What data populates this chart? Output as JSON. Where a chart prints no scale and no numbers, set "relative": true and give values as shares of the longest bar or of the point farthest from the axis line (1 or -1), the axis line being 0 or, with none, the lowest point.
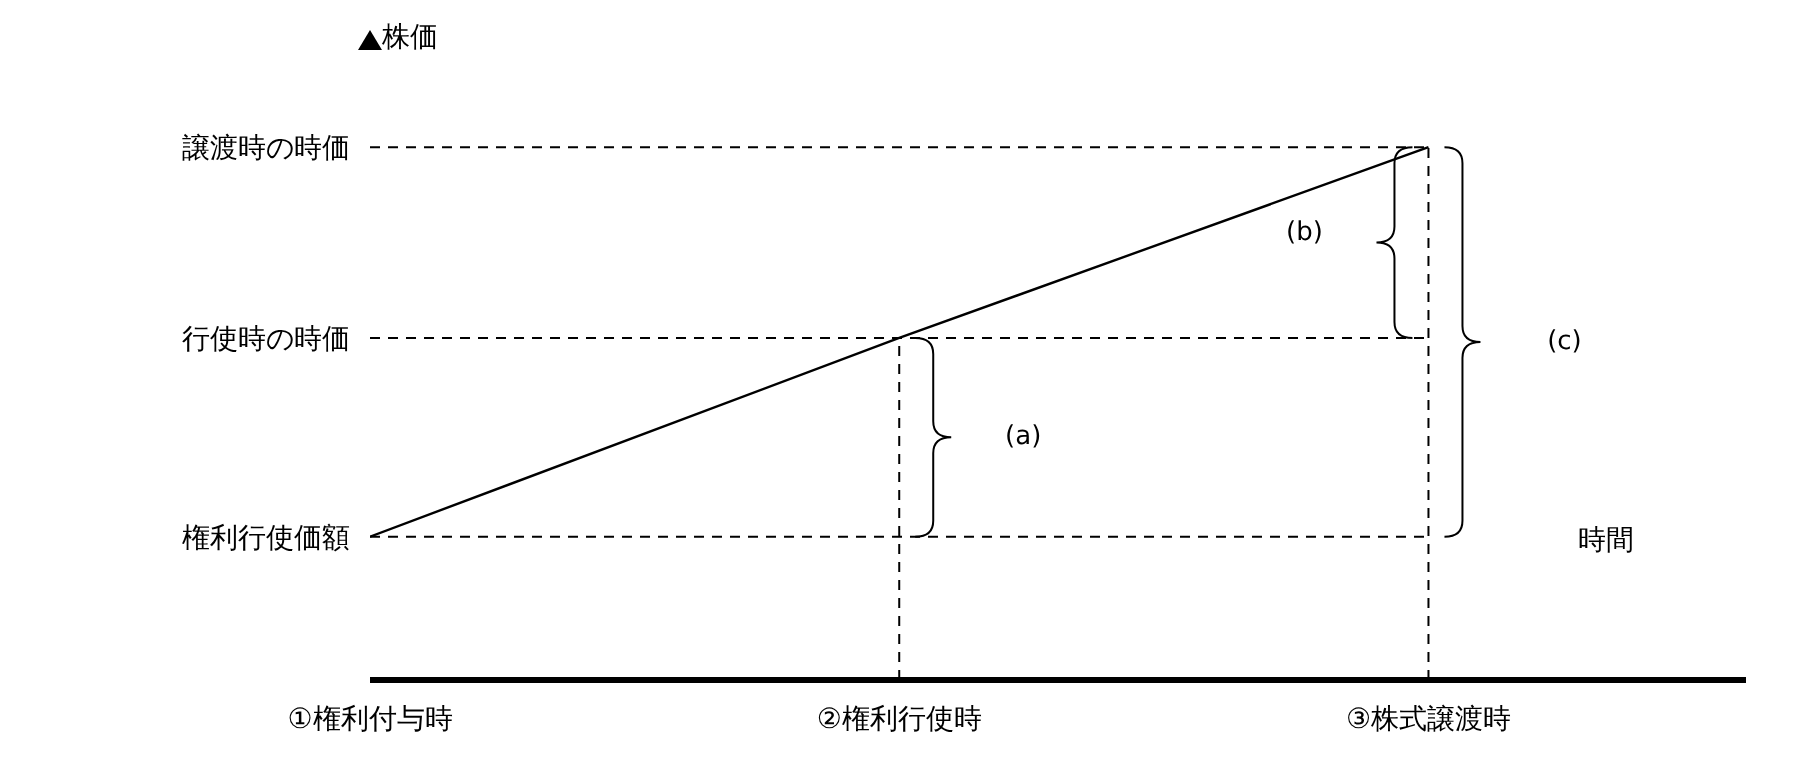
{
  "chart_data": {
    "type": "line",
    "xlabel": "時間",
    "ylabel": "株価",
    "relative": true,
    "categories": [
      "①権利付与時",
      "②権利行使時",
      "③株式譲渡時"
    ],
    "series": [
      {
        "color": "#000000",
        "values": [
          0.269,
          0.642,
          1
        ]
      }
    ],
    "marker": "none",
    "line_style": "solid",
    "ref_lines": [
      {
        "axis": "y",
        "value": 0.269,
        "label": "権利行使価額",
        "line_style": "dashed"
      },
      {
        "axis": "y",
        "value": 0.642,
        "label": "行使時の時価",
        "line_style": "dashed"
      },
      {
        "axis": "y",
        "value": 1,
        "label": "譲渡時の時価",
        "line_style": "dashed"
      },
      {
        "axis": "x",
        "value": "②権利行使時",
        "line_style": "dashed"
      },
      {
        "axis": "x",
        "value": "③株式譲渡時",
        "line_style": "dashed"
      }
    ],
    "annotations": [
      "(a)",
      "(b)",
      "(c)"
    ]
  }
}
